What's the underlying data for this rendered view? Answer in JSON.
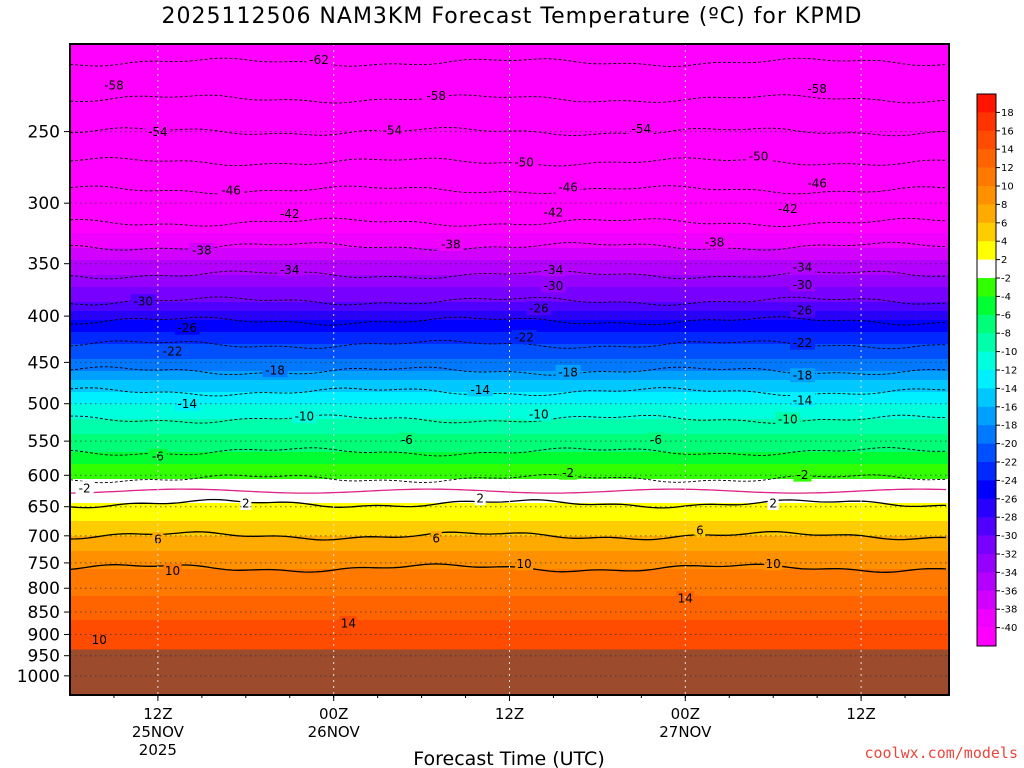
{
  "title": "2025112506 NAM3KM Forecast Temperature (ºC) for KPMD",
  "watermark": "coolwx.com/models",
  "chart_data": {
    "type": "contour",
    "title": "2025112506 NAM3KM Forecast Temperature (ºC) for KPMD",
    "xlabel": "Forecast Time (UTC)",
    "ylabel": "",
    "y_axis": {
      "scale": "log-pressure",
      "ylim": [
        1050,
        200
      ],
      "ticks": [
        "250",
        "300",
        "350",
        "400",
        "450",
        "500",
        "550",
        "600",
        "650",
        "700",
        "750",
        "800",
        "850",
        "900",
        "950",
        "1000"
      ]
    },
    "x_axis": {
      "range_hours": [
        0,
        60
      ],
      "ticks": [
        {
          "hour": 6,
          "label": "12Z",
          "sub1": "25NOV",
          "sub2": "2025"
        },
        {
          "hour": 18,
          "label": "00Z",
          "sub1": "26NOV",
          "sub2": ""
        },
        {
          "hour": 30,
          "label": "12Z",
          "sub1": "",
          "sub2": ""
        },
        {
          "hour": 42,
          "label": "00Z",
          "sub1": "27NOV",
          "sub2": ""
        },
        {
          "hour": 54,
          "label": "12Z",
          "sub1": "",
          "sub2": ""
        }
      ]
    },
    "surface_pressure_hpa": 935,
    "temperature_profile": [
      {
        "p": 200,
        "t": -64
      },
      {
        "p": 230,
        "t": -58
      },
      {
        "p": 250,
        "t": -54
      },
      {
        "p": 270,
        "t": -50
      },
      {
        "p": 290,
        "t": -46
      },
      {
        "p": 315,
        "t": -42
      },
      {
        "p": 335,
        "t": -38
      },
      {
        "p": 360,
        "t": -34
      },
      {
        "p": 385,
        "t": -30
      },
      {
        "p": 405,
        "t": -26
      },
      {
        "p": 430,
        "t": -22
      },
      {
        "p": 460,
        "t": -18
      },
      {
        "p": 485,
        "t": -14
      },
      {
        "p": 520,
        "t": -10
      },
      {
        "p": 565,
        "t": -6
      },
      {
        "p": 605,
        "t": -2
      },
      {
        "p": 645,
        "t": 2
      },
      {
        "p": 700,
        "t": 6
      },
      {
        "p": 760,
        "t": 10
      },
      {
        "p": 870,
        "t": 14
      },
      {
        "p": 935,
        "t": 15
      }
    ],
    "contour_labels": [
      {
        "value": "-62",
        "hour": 17,
        "p": 208
      },
      {
        "value": "-58",
        "hour": 3,
        "p": 222
      },
      {
        "value": "-58",
        "hour": 25,
        "p": 228
      },
      {
        "value": "-58",
        "hour": 51,
        "p": 224
      },
      {
        "value": "-54",
        "hour": 6,
        "p": 250
      },
      {
        "value": "-54",
        "hour": 22,
        "p": 249
      },
      {
        "value": "-54",
        "hour": 39,
        "p": 248
      },
      {
        "value": "-50",
        "hour": 31,
        "p": 270
      },
      {
        "value": "-50",
        "hour": 47,
        "p": 266
      },
      {
        "value": "-46",
        "hour": 11,
        "p": 290
      },
      {
        "value": "-46",
        "hour": 34,
        "p": 288
      },
      {
        "value": "-46",
        "hour": 51,
        "p": 285
      },
      {
        "value": "-42",
        "hour": 15,
        "p": 308
      },
      {
        "value": "-42",
        "hour": 33,
        "p": 307
      },
      {
        "value": "-42",
        "hour": 49,
        "p": 304
      },
      {
        "value": "-38",
        "hour": 9,
        "p": 338
      },
      {
        "value": "-38",
        "hour": 26,
        "p": 333
      },
      {
        "value": "-38",
        "hour": 44,
        "p": 331
      },
      {
        "value": "-34",
        "hour": 15,
        "p": 355
      },
      {
        "value": "-34",
        "hour": 33,
        "p": 355
      },
      {
        "value": "-34",
        "hour": 50,
        "p": 353
      },
      {
        "value": "-30",
        "hour": 5,
        "p": 385
      },
      {
        "value": "-30",
        "hour": 33,
        "p": 370
      },
      {
        "value": "-30",
        "hour": 50,
        "p": 369
      },
      {
        "value": "-26",
        "hour": 8,
        "p": 412
      },
      {
        "value": "-26",
        "hour": 32,
        "p": 392
      },
      {
        "value": "-26",
        "hour": 50,
        "p": 394
      },
      {
        "value": "-22",
        "hour": 7,
        "p": 437
      },
      {
        "value": "-22",
        "hour": 31,
        "p": 422
      },
      {
        "value": "-22",
        "hour": 50,
        "p": 428
      },
      {
        "value": "-18",
        "hour": 14,
        "p": 459
      },
      {
        "value": "-18",
        "hour": 34,
        "p": 461
      },
      {
        "value": "-18",
        "hour": 50,
        "p": 465
      },
      {
        "value": "-14",
        "hour": 8,
        "p": 500
      },
      {
        "value": "-14",
        "hour": 28,
        "p": 482
      },
      {
        "value": "-14",
        "hour": 50,
        "p": 495
      },
      {
        "value": "-10",
        "hour": 16,
        "p": 516
      },
      {
        "value": "-10",
        "hour": 32,
        "p": 513
      },
      {
        "value": "-10",
        "hour": 49,
        "p": 520
      },
      {
        "value": "-6",
        "hour": 6,
        "p": 571
      },
      {
        "value": "-6",
        "hour": 23,
        "p": 548
      },
      {
        "value": "-6",
        "hour": 40,
        "p": 548
      },
      {
        "value": "-2",
        "hour": 1,
        "p": 620
      },
      {
        "value": "-2",
        "hour": 34,
        "p": 596
      },
      {
        "value": "-2",
        "hour": 50,
        "p": 599
      },
      {
        "value": "2",
        "hour": 12,
        "p": 644
      },
      {
        "value": "2",
        "hour": 28,
        "p": 636
      },
      {
        "value": "2",
        "hour": 48,
        "p": 644
      },
      {
        "value": "6",
        "hour": 6,
        "p": 706
      },
      {
        "value": "6",
        "hour": 25,
        "p": 704
      },
      {
        "value": "6",
        "hour": 43,
        "p": 690
      },
      {
        "value": "10",
        "hour": 7,
        "p": 765
      },
      {
        "value": "10",
        "hour": 31,
        "p": 751
      },
      {
        "value": "10",
        "hour": 48,
        "p": 751
      },
      {
        "value": "14",
        "hour": 19,
        "p": 874
      },
      {
        "value": "14",
        "hour": 42,
        "p": 820
      },
      {
        "value": "10",
        "hour": 2,
        "p": 912
      }
    ],
    "colorbar": {
      "labels": [
        "18",
        "16",
        "14",
        "12",
        "10",
        "8",
        "6",
        "4",
        "2",
        "-2",
        "-4",
        "-6",
        "-8",
        "-10",
        "-12",
        "-14",
        "-16",
        "-18",
        "-20",
        "-22",
        "-24",
        "-26",
        "-28",
        "-30",
        "-32",
        "-34",
        "-36",
        "-38",
        "-40"
      ],
      "colors": [
        "#ff1400",
        "#ff3300",
        "#ff4c00",
        "#ff6400",
        "#ff7800",
        "#ff9000",
        "#ffaa00",
        "#ffcc00",
        "#ffff00",
        "#ffffff",
        "#32ff00",
        "#00ff32",
        "#00ff78",
        "#00ffaa",
        "#00ffdc",
        "#00f0ff",
        "#00c8ff",
        "#00a0ff",
        "#0078ff",
        "#0050ff",
        "#0028ff",
        "#0000ff",
        "#2800ff",
        "#5000ff",
        "#7800ff",
        "#9600ff",
        "#b400ff",
        "#d200ff",
        "#f000ff",
        "#ff00ff"
      ]
    },
    "ground_color": "#9c4b2c",
    "freezing_line_color": "#dd2288"
  }
}
